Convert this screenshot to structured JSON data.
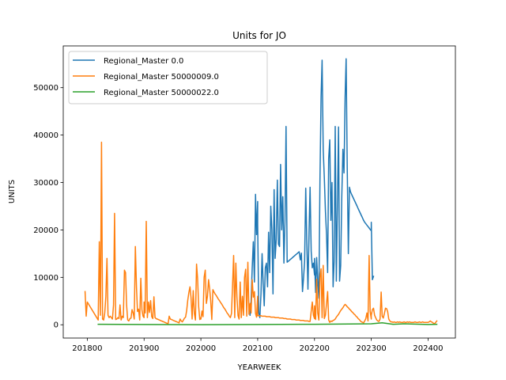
{
  "chart_data": {
    "type": "line",
    "title": "Units for JO",
    "xlabel": "YEARWEEK",
    "ylabel": "UNITS",
    "xlim": [
      201730,
      202425
    ],
    "ylim": [
      -2800,
      58800
    ],
    "xticks": [
      201800,
      201900,
      202000,
      202100,
      202200,
      202300,
      202400
    ],
    "yticks": [
      0,
      10000,
      20000,
      30000,
      40000,
      50000
    ],
    "grid": false,
    "legend_position": "upper-left",
    "series": [
      {
        "name": "Regional_Master 0.0",
        "color": "#1f77b4",
        "x": [
          202045,
          202046,
          202047,
          202048,
          202049,
          202050,
          202051,
          202052,
          202100,
          202101,
          202102,
          202103,
          202104,
          202105,
          202106,
          202107,
          202108,
          202109,
          202110,
          202111,
          202112,
          202113,
          202114,
          202115,
          202116,
          202117,
          202118,
          202119,
          202120,
          202121,
          202122,
          202123,
          202124,
          202125,
          202126,
          202127,
          202128,
          202129,
          202130,
          202131,
          202132,
          202133,
          202134,
          202135,
          202136,
          202137,
          202138,
          202139,
          202140,
          202141,
          202142,
          202143,
          202144,
          202145,
          202146,
          202147,
          202148,
          202149,
          202150,
          202151,
          202152,
          202200,
          202201,
          202202,
          202203,
          202204,
          202205,
          202206,
          202207,
          202208,
          202209,
          202210,
          202211,
          202212,
          202213,
          202214,
          202215,
          202216,
          202217,
          202218,
          202219,
          202220,
          202221,
          202222,
          202223,
          202224,
          202225,
          202226,
          202227,
          202228,
          202229,
          202230,
          202231,
          202232,
          202233,
          202234,
          202235,
          202236,
          202237,
          202238,
          202239,
          202240,
          202241,
          202242,
          202243,
          202244,
          202245,
          202246,
          202247,
          202248,
          202249,
          202250,
          202251,
          202252,
          202300,
          202301,
          202302
        ],
        "y": [
          2000,
          5000,
          12000,
          17500,
          9000,
          27500,
          19000,
          26000,
          21300,
          2500,
          1500,
          6500,
          15000,
          9000,
          4000,
          12000,
          13000,
          8000,
          19500,
          11000,
          25000,
          20000,
          6500,
          28500,
          14000,
          18000,
          30500,
          17000,
          16500,
          33800,
          20000,
          27000,
          13000,
          22000,
          41800,
          13200,
          13400,
          13600,
          13800,
          14000,
          14200,
          14400,
          14600,
          14800,
          15000,
          15200,
          15400,
          13700,
          15100,
          7000,
          10000,
          13500,
          28800,
          17000,
          7500,
          19500,
          29000,
          15500,
          12000,
          13000,
          10500,
          14000,
          6800,
          14200,
          9200,
          5600,
          30500,
          48000,
          55800,
          37000,
          31000,
          24000,
          19000,
          11000,
          35000,
          39000,
          22000,
          30000,
          8000,
          13200,
          41800,
          9200,
          25600,
          41700,
          9200,
          12500,
          27000,
          37000,
          32000,
          48000,
          56100,
          33000,
          15000,
          29000,
          28000,
          27500,
          27000,
          26500,
          26000,
          25500,
          25000,
          24500,
          24000,
          23500,
          23000,
          22500,
          22000,
          21600,
          21300,
          21000,
          20700,
          20400,
          20100,
          19800,
          21600,
          9500,
          10200
        ]
      },
      {
        "name": "Regional_Master 50000009.0",
        "color": "#ff7f0e",
        "x": [
          201750,
          201751,
          201752,
          201810,
          201811,
          201812,
          201813,
          201814,
          201815,
          201816,
          201817,
          201818,
          201819,
          201820,
          201821,
          201822,
          201823,
          201824,
          201825,
          201826,
          201827,
          201828,
          201829,
          201830,
          201831,
          201832,
          201833,
          201834,
          201835,
          201836,
          201837,
          201838,
          201839,
          201840,
          201841,
          201842,
          201843,
          201844,
          201845,
          201846,
          201847,
          201848,
          201849,
          201850,
          201851,
          201852,
          201900,
          201901,
          201902,
          201903,
          201904,
          201905,
          201906,
          201907,
          201908,
          201909,
          201910,
          201911,
          201912,
          201913,
          201914,
          201915,
          201916,
          201917,
          201918,
          201919,
          201920,
          201921,
          201922,
          201923,
          201924,
          201925,
          201926,
          201927,
          201928,
          201929,
          201930,
          201931,
          201932,
          201933,
          201934,
          201935,
          201936,
          201937,
          201938,
          201939,
          201940,
          201941,
          201942,
          201943,
          201944,
          201945,
          201946,
          201947,
          201948,
          201949,
          201950,
          201951,
          201952,
          202000,
          202001,
          202002,
          202003,
          202004,
          202005,
          202006,
          202007,
          202008,
          202009,
          202010,
          202011,
          202012,
          202013,
          202014,
          202015,
          202016,
          202017,
          202018,
          202019,
          202020,
          202021,
          202022,
          202023,
          202024,
          202025,
          202026,
          202027,
          202028,
          202029,
          202030,
          202031,
          202032,
          202033,
          202034,
          202035,
          202036,
          202037,
          202038,
          202039,
          202040,
          202041,
          202042,
          202043,
          202044,
          202045,
          202046,
          202047,
          202048,
          202049,
          202050,
          202051,
          202052,
          202100,
          202101,
          202102,
          202103,
          202104,
          202105,
          202106,
          202107,
          202108,
          202109,
          202110,
          202111,
          202112,
          202113,
          202114,
          202115,
          202116,
          202117,
          202118,
          202119,
          202120,
          202121,
          202122,
          202123,
          202124,
          202125,
          202126,
          202127,
          202128,
          202129,
          202130,
          202131,
          202132,
          202133,
          202134,
          202135,
          202136,
          202137,
          202138,
          202139,
          202140,
          202141,
          202142,
          202143,
          202144,
          202145,
          202146,
          202147,
          202148,
          202149,
          202150,
          202151,
          202152,
          202200,
          202201,
          202202,
          202203,
          202204,
          202205,
          202206,
          202207,
          202208,
          202209,
          202210,
          202211,
          202212,
          202213,
          202214,
          202215,
          202216,
          202217,
          202218,
          202219,
          202220,
          202221,
          202222,
          202223,
          202224,
          202225,
          202226,
          202227,
          202228,
          202229,
          202230,
          202231,
          202232,
          202233,
          202234,
          202235,
          202236,
          202237,
          202238,
          202239,
          202240,
          202241,
          202242,
          202243,
          202244,
          202245,
          202246,
          202247,
          202248,
          202249,
          202250,
          202251,
          202252,
          202300,
          202301,
          202302,
          202303,
          202304,
          202305,
          202306,
          202307,
          202308,
          202309,
          202310,
          202311,
          202312,
          202313,
          202314,
          202315,
          202316,
          202317,
          202318,
          202319,
          202320,
          202321,
          202322,
          202323,
          202324,
          202325,
          202326,
          202327,
          202328,
          202329,
          202330,
          202331,
          202332,
          202333,
          202334,
          202335,
          202336,
          202337,
          202338,
          202339,
          202340,
          202341,
          202342,
          202343,
          202344,
          202345,
          202346,
          202347,
          202348,
          202349,
          202350,
          202351,
          202352,
          202400,
          202401,
          202402,
          202403,
          202404,
          202405,
          202406,
          202407,
          202408
        ],
        "y": [
          7000,
          1800,
          4800,
          1000,
          17500,
          2000,
          38500,
          1200,
          1000,
          2500,
          6000,
          14000,
          2000,
          1500,
          1800,
          1500,
          1200,
          4200,
          23500,
          1100,
          1200,
          1500,
          1300,
          4200,
          1000,
          1800,
          1500,
          11500,
          11000,
          4200,
          1000,
          800,
          1300,
          1400,
          3200,
          2500,
          1200,
          16500,
          8000,
          2800,
          3300,
          1000,
          9800,
          3200,
          1800,
          1500,
          4800,
          2500,
          21800,
          1500,
          4800,
          2600,
          5100,
          1700,
          1300,
          5900,
          1500,
          1300,
          1200,
          1100,
          1000,
          900,
          800,
          700,
          600,
          500,
          400,
          300,
          200,
          1800,
          1200,
          1100,
          1000,
          900,
          800,
          700,
          600,
          500,
          400,
          1200,
          800,
          600,
          1000,
          1400,
          1600,
          3000,
          5200,
          6800,
          8000,
          5800,
          1200,
          7200,
          2400,
          1000,
          12800,
          9800,
          3800,
          1100,
          1500,
          1200,
          2900,
          1700,
          10000,
          11500,
          4500,
          6000,
          9500,
          7700,
          5100,
          1100,
          7400,
          6900,
          6500,
          6200,
          5800,
          5400,
          5100,
          4700,
          4400,
          4000,
          3600,
          3300,
          2900,
          2500,
          2200,
          1800,
          1500,
          2400,
          8500,
          14600,
          1500,
          13000,
          5800,
          1900,
          1200,
          9000,
          1500,
          6000,
          2000,
          10000,
          11700,
          1800,
          13200,
          2200,
          4500,
          2500,
          9500,
          5800,
          7000,
          2400,
          1600,
          6000,
          1900,
          1900,
          1900,
          1900,
          1800,
          1800,
          1800,
          1800,
          1700,
          1700,
          1700,
          1700,
          1600,
          1600,
          1600,
          1600,
          1500,
          1500,
          1500,
          1500,
          1400,
          1400,
          1400,
          1400,
          1300,
          1300,
          1300,
          1200,
          1200,
          1200,
          1200,
          1100,
          1100,
          1100,
          1100,
          1000,
          1000,
          1000,
          1000,
          900,
          900,
          900,
          900,
          800,
          800,
          800,
          800,
          700,
          700,
          2800,
          4800,
          2000,
          1300,
          4000,
          1100,
          9600,
          2500,
          1000,
          10000,
          11800,
          1500,
          12500,
          1300,
          2000,
          4500,
          7000,
          1000,
          500,
          800,
          700,
          900,
          1000,
          1200,
          1600,
          1900,
          2200,
          2600,
          3000,
          3300,
          3600,
          4000,
          4300,
          4100,
          3800,
          3600,
          3300,
          3100,
          2800,
          2600,
          2300,
          2100,
          1800,
          1600,
          1300,
          1100,
          800,
          600,
          500,
          400,
          800,
          1300,
          2500,
          800,
          14600,
          2800,
          1200,
          2000,
          3200,
          3500,
          2000,
          1500,
          1000,
          800,
          700,
          1200,
          6900,
          1800,
          1400,
          2400,
          3500,
          3400,
          2800,
          1200,
          800,
          600,
          600,
          500,
          600,
          500,
          500,
          600,
          500,
          600,
          500,
          500,
          500,
          600,
          500,
          500,
          600,
          500,
          600,
          500,
          500,
          500,
          500,
          600,
          500,
          500,
          500,
          600,
          500,
          500,
          600,
          500,
          500,
          500,
          500,
          500,
          500,
          600,
          800,
          600,
          500,
          300,
          200,
          500,
          800
        ]
      },
      {
        "name": "Regional_Master 50000022.0",
        "color": "#2ca02c",
        "x": [
          201810,
          201900,
          202000,
          202100,
          202200,
          202300,
          202310,
          202320,
          202330,
          202400,
          202408
        ],
        "y": [
          100,
          50,
          20,
          50,
          100,
          200,
          400,
          100,
          200,
          50,
          100
        ]
      }
    ]
  }
}
